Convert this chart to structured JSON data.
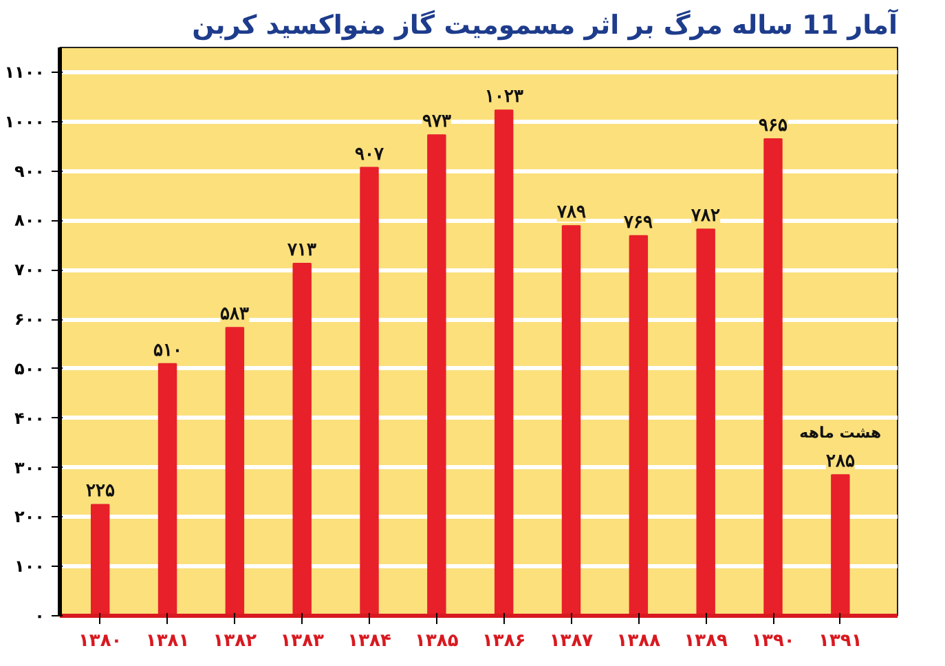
{
  "chart_data": {
    "type": "bar",
    "title": "آمار 11 ساله مرگ بر اثر مسمومیت گاز منواکسید کربن",
    "categories": [
      "۱۳۸۰",
      "۱۳۸۱",
      "۱۳۸۲",
      "۱۳۸۳",
      "۱۳۸۴",
      "۱۳۸۵",
      "۱۳۸۶",
      "۱۳۸۷",
      "۱۳۸۸",
      "۱۳۸۹",
      "۱۳۹۰",
      "۱۳۹۱"
    ],
    "values": [
      225,
      510,
      583,
      713,
      907,
      973,
      1023,
      789,
      769,
      782,
      965,
      285
    ],
    "value_labels": [
      "۲۲۵",
      "۵۱۰",
      "۵۸۳",
      "۷۱۳",
      "۹۰۷",
      "۹۷۳",
      "۱۰۲۳",
      "۷۸۹",
      "۷۶۹",
      "۷۸۲",
      "۹۶۵",
      "۲۸۵"
    ],
    "color": "#e8202a",
    "ylim": [
      0,
      1150
    ],
    "yticks": [
      {
        "value": 0,
        "label": "۰"
      },
      {
        "value": 100,
        "label": "۱۰۰"
      },
      {
        "value": 200,
        "label": "۲۰۰"
      },
      {
        "value": 300,
        "label": "۳۰۰"
      },
      {
        "value": 400,
        "label": "۴۰۰"
      },
      {
        "value": 500,
        "label": "۵۰۰"
      },
      {
        "value": 600,
        "label": "۶۰۰"
      },
      {
        "value": 700,
        "label": "۷۰۰"
      },
      {
        "value": 800,
        "label": "۸۰۰"
      },
      {
        "value": 900,
        "label": "۹۰۰"
      },
      {
        "value": 1000,
        "label": "۱۰۰۰"
      },
      {
        "value": 1100,
        "label": "۱۱۰۰"
      }
    ],
    "grid": "y",
    "annotations": [
      {
        "text": "هشت ماهه",
        "x": "۱۳۹۱",
        "y": 285
      }
    ]
  }
}
